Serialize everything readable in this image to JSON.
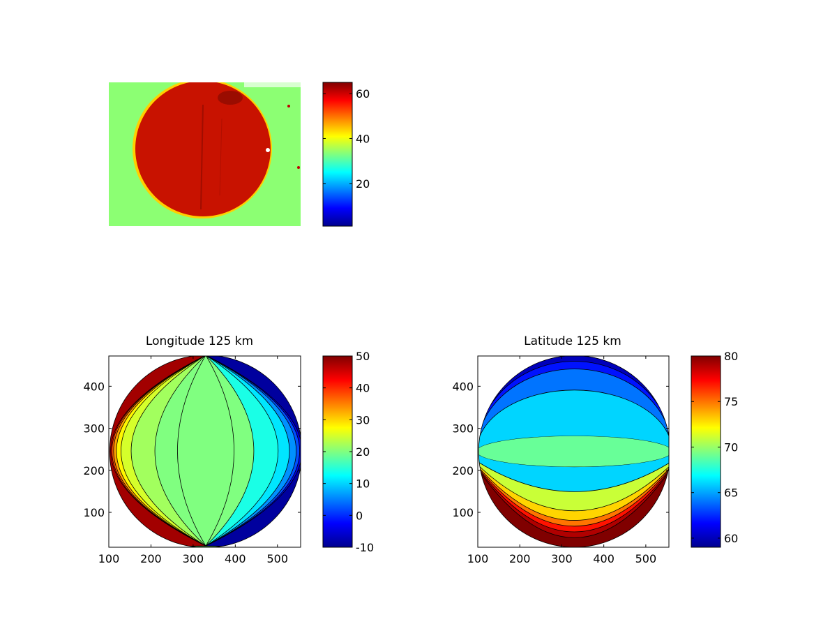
{
  "colormap": [
    "#00008f",
    "#0000ff",
    "#0080ff",
    "#00ffff",
    "#80ff80",
    "#ffff00",
    "#ff8000",
    "#ff0000",
    "#800000"
  ],
  "chart_data": [
    {
      "type": "heatmap",
      "subtype": "image",
      "title": "",
      "colorbar": {
        "ticks": [
          20,
          40,
          60
        ],
        "range": [
          1,
          65
        ]
      },
      "description_colors": {
        "background": "#8cff73",
        "disk": "#d01000",
        "rim": "#ffd200"
      }
    },
    {
      "type": "heatmap",
      "subtype": "filled-contour",
      "title": "Longitude 125 km",
      "xlim": [
        100,
        555
      ],
      "ylim": [
        17,
        472
      ],
      "xticks": [
        100,
        200,
        300,
        400,
        500
      ],
      "yticks": [
        100,
        200,
        300,
        400
      ],
      "colorbar": {
        "ticks": [
          -10,
          0,
          10,
          20,
          30,
          40,
          50
        ],
        "range": [
          -10,
          50
        ]
      },
      "disk": {
        "center": [
          330,
          245
        ],
        "radius": 228
      },
      "pole": {
        "x": 330,
        "y": 20
      },
      "contour_levels": [
        -10,
        -5,
        0,
        5,
        10,
        15,
        20,
        25,
        30,
        35,
        40,
        45,
        50
      ],
      "center_value": 20
    },
    {
      "type": "heatmap",
      "subtype": "filled-contour",
      "title": "Latitude 125 km",
      "xlim": [
        100,
        555
      ],
      "ylim": [
        17,
        472
      ],
      "xticks": [
        100,
        200,
        300,
        400,
        500
      ],
      "yticks": [
        100,
        200,
        300,
        400
      ],
      "colorbar": {
        "ticks": [
          60,
          65,
          70,
          75,
          80
        ],
        "range": [
          59,
          80
        ]
      },
      "disk": {
        "center": [
          330,
          245
        ],
        "radius": 228
      },
      "center_value": 69
    }
  ]
}
